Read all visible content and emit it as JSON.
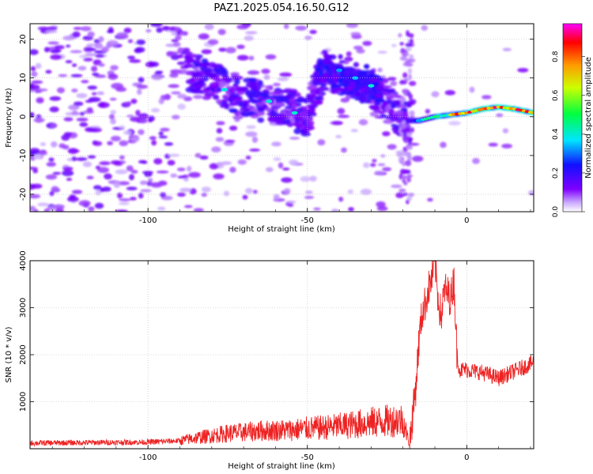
{
  "figure": {
    "title": "PAZ1.2025.054.16.50.G12"
  },
  "chart_data": [
    {
      "type": "heatmap",
      "xlabel": "Height of straight line (km)",
      "ylabel": "Frequency (Hz)",
      "xlim": [
        -137,
        21
      ],
      "ylim": [
        -24.5,
        24
      ],
      "xticks": [
        -100,
        -50,
        0
      ],
      "yticks": [
        -20,
        -10,
        0,
        10,
        20
      ],
      "colorbar": {
        "label": "Normalized spectral amplitude",
        "range": [
          0.0,
          0.97
        ],
        "ticks": [
          0.0,
          0.2,
          0.4,
          0.6,
          0.8
        ],
        "colormap": [
          "#ffffff",
          "#7f00ff",
          "#0000ff",
          "#00ffff",
          "#00ff00",
          "#ffff00",
          "#ff0000",
          "#ff00ff"
        ]
      },
      "ridge": {
        "description_points": [
          {
            "x": -80,
            "y": 9
          },
          {
            "x": -75,
            "y": 7
          },
          {
            "x": -70,
            "y": 5
          },
          {
            "x": -62,
            "y": 3.5
          },
          {
            "x": -55,
            "y": 2
          },
          {
            "x": -50,
            "y": 0
          },
          {
            "x": -45,
            "y": 12
          },
          {
            "x": -40,
            "y": 11
          },
          {
            "x": -35,
            "y": 9
          },
          {
            "x": -30,
            "y": 8
          },
          {
            "x": -20,
            "y": -1
          },
          {
            "x": -15,
            "y": -1
          },
          {
            "x": -10,
            "y": 0
          },
          {
            "x": -5,
            "y": 0.5
          },
          {
            "x": 0,
            "y": 1
          },
          {
            "x": 5,
            "y": 2
          },
          {
            "x": 10,
            "y": 2.5
          },
          {
            "x": 15,
            "y": 2
          },
          {
            "x": 21,
            "y": 1
          }
        ]
      },
      "grid": true
    },
    {
      "type": "line",
      "xlabel": "Height of straight line (km)",
      "ylabel": "SNR (10 * v/v)",
      "xlim": [
        -137,
        21
      ],
      "ylim": [
        0,
        4000
      ],
      "xticks": [
        -100,
        -50,
        0
      ],
      "yticks": [
        1000,
        2000,
        3000,
        4000
      ],
      "grid": true,
      "series": [
        {
          "color": "#ee2222",
          "x": [
            -137,
            -120,
            -100,
            -90,
            -85,
            -80,
            -75,
            -70,
            -65,
            -60,
            -55,
            -50,
            -45,
            -40,
            -35,
            -30,
            -25,
            -20,
            -18,
            -16,
            -15,
            -14,
            -13,
            -12,
            -11,
            -10,
            -9,
            -8,
            -7,
            -6,
            -5,
            -4,
            -3,
            -2,
            -1,
            0,
            5,
            10,
            15,
            20,
            21
          ],
          "values": [
            120,
            130,
            140,
            170,
            230,
            280,
            330,
            350,
            380,
            390,
            400,
            430,
            450,
            480,
            520,
            560,
            590,
            620,
            100,
            1300,
            2300,
            2900,
            3100,
            3400,
            3600,
            4000,
            3200,
            2800,
            3400,
            3300,
            3200,
            3600,
            1900,
            1650,
            1700,
            1680,
            1620,
            1500,
            1650,
            1800,
            1850
          ]
        }
      ]
    }
  ]
}
